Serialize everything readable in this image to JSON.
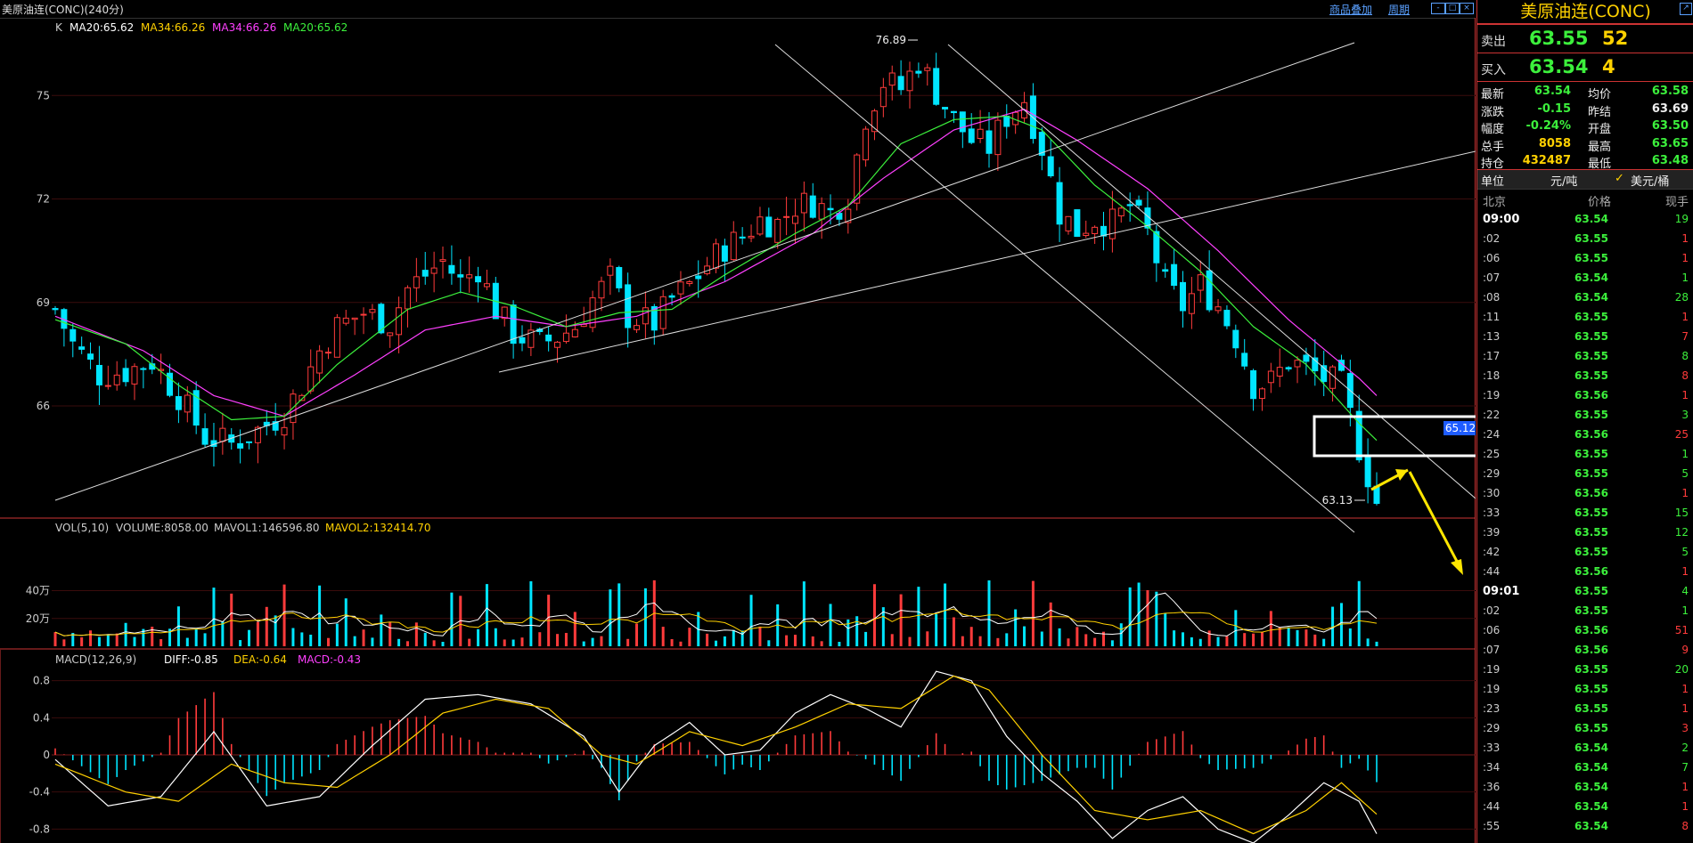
{
  "window": {
    "title": "美原油连(CONC)(240分)",
    "link_overlay": "商品叠加",
    "link_period": "周期",
    "buttons": [
      "-",
      "□",
      "×"
    ]
  },
  "chart_data": [
    {
      "type": "candlestick",
      "title": "K",
      "indicators": [
        {
          "name": "MA20:65.62",
          "color": "#ffffff"
        },
        {
          "name": "MA34:66.26",
          "color": "#ffd100"
        },
        {
          "name": "MA34:66.26",
          "color": "#ff40ff"
        },
        {
          "name": "MA20:65.62",
          "color": "#3cf03c"
        }
      ],
      "y_ticks": [
        75,
        72,
        69,
        66
      ],
      "ylim": [
        62.8,
        77.2
      ],
      "annotations": {
        "high": "76.89",
        "low": "63.13",
        "box_value": "65.12"
      },
      "close_path": [
        [
          0,
          68.8
        ],
        [
          2,
          67.8
        ],
        [
          5,
          66.9
        ],
        [
          8,
          67.0
        ],
        [
          11,
          67.3
        ],
        [
          14,
          66.3
        ],
        [
          17,
          65.1
        ],
        [
          20,
          64.9
        ],
        [
          23,
          65.3
        ],
        [
          26,
          65.8
        ],
        [
          28,
          66.6
        ],
        [
          30,
          67.6
        ],
        [
          32,
          68.3
        ],
        [
          35,
          68.7
        ],
        [
          38,
          68.4
        ],
        [
          40,
          69.4
        ],
        [
          42,
          69.8
        ],
        [
          44,
          70.2
        ],
        [
          46,
          69.6
        ],
        [
          48,
          70.0
        ],
        [
          50,
          68.8
        ],
        [
          52,
          68.1
        ],
        [
          55,
          67.8
        ],
        [
          57,
          68.0
        ],
        [
          59,
          68.3
        ],
        [
          61,
          69.1
        ],
        [
          63,
          69.7
        ],
        [
          65,
          68.6
        ],
        [
          68,
          68.4
        ],
        [
          70,
          69.1
        ],
        [
          72,
          69.5
        ],
        [
          74,
          70.1
        ],
        [
          76,
          70.6
        ],
        [
          78,
          70.9
        ],
        [
          80,
          71.4
        ],
        [
          82,
          71.3
        ],
        [
          84,
          71.8
        ],
        [
          86,
          71.9
        ],
        [
          88,
          71.6
        ],
        [
          90,
          72.1
        ],
        [
          92,
          74.4
        ],
        [
          94,
          75.4
        ],
        [
          96,
          75.2
        ],
        [
          98,
          76.0
        ],
        [
          100,
          75.1
        ],
        [
          102,
          74.3
        ],
        [
          104,
          73.7
        ],
        [
          106,
          73.5
        ],
        [
          108,
          74.4
        ],
        [
          110,
          74.9
        ],
        [
          112,
          73.5
        ],
        [
          114,
          71.6
        ],
        [
          116,
          71.1
        ],
        [
          118,
          71.4
        ],
        [
          120,
          71.3
        ],
        [
          122,
          71.8
        ],
        [
          124,
          71.0
        ],
        [
          126,
          69.5
        ],
        [
          128,
          68.9
        ],
        [
          130,
          69.5
        ],
        [
          132,
          68.9
        ],
        [
          134,
          68.0
        ],
        [
          136,
          66.6
        ],
        [
          138,
          66.7
        ],
        [
          140,
          67.3
        ],
        [
          142,
          67.1
        ],
        [
          144,
          66.8
        ],
        [
          146,
          66.6
        ],
        [
          148,
          64.8
        ],
        [
          150,
          63.2
        ]
      ],
      "ma_fast": [
        [
          0,
          68.5
        ],
        [
          8,
          67.8
        ],
        [
          14,
          66.6
        ],
        [
          20,
          65.6
        ],
        [
          26,
          65.7
        ],
        [
          32,
          67.2
        ],
        [
          40,
          68.8
        ],
        [
          46,
          69.3
        ],
        [
          52,
          68.9
        ],
        [
          58,
          68.3
        ],
        [
          64,
          68.7
        ],
        [
          70,
          68.8
        ],
        [
          76,
          69.8
        ],
        [
          84,
          71.0
        ],
        [
          90,
          71.8
        ],
        [
          96,
          73.6
        ],
        [
          102,
          74.3
        ],
        [
          108,
          74.4
        ],
        [
          112,
          74.0
        ],
        [
          118,
          72.4
        ],
        [
          124,
          71.2
        ],
        [
          130,
          69.9
        ],
        [
          136,
          68.3
        ],
        [
          142,
          67.2
        ],
        [
          148,
          65.5
        ],
        [
          150,
          65.0
        ]
      ],
      "ma_slow": [
        [
          0,
          68.6
        ],
        [
          10,
          67.6
        ],
        [
          18,
          66.3
        ],
        [
          26,
          65.7
        ],
        [
          34,
          66.9
        ],
        [
          42,
          68.2
        ],
        [
          50,
          68.6
        ],
        [
          58,
          68.3
        ],
        [
          66,
          68.6
        ],
        [
          76,
          69.6
        ],
        [
          86,
          71.0
        ],
        [
          94,
          72.6
        ],
        [
          102,
          74.0
        ],
        [
          110,
          74.6
        ],
        [
          116,
          73.7
        ],
        [
          124,
          72.3
        ],
        [
          132,
          70.5
        ],
        [
          140,
          68.5
        ],
        [
          148,
          66.8
        ],
        [
          150,
          66.3
        ]
      ]
    },
    {
      "type": "bar",
      "title": "VOL(5,10)",
      "legend": [
        "VOLUME:8058.00",
        "MAVOL1:146596.80",
        "MAVOL2:132414.70"
      ],
      "y_ticks": [
        "40万",
        "20万"
      ]
    },
    {
      "type": "bar",
      "title": "MACD(12,26,9)",
      "legend": [
        "DIFF:-0.85",
        "DEA:-0.64",
        "MACD:-0.43"
      ],
      "y_ticks": [
        "0.8",
        "0.4",
        "0",
        "-0.4",
        "-0.8"
      ],
      "ylim": [
        -0.95,
        0.95
      ],
      "diff": [
        [
          0,
          -0.05
        ],
        [
          6,
          -0.55
        ],
        [
          12,
          -0.45
        ],
        [
          18,
          0.25
        ],
        [
          24,
          -0.55
        ],
        [
          30,
          -0.45
        ],
        [
          36,
          0.1
        ],
        [
          42,
          0.6
        ],
        [
          48,
          0.65
        ],
        [
          54,
          0.55
        ],
        [
          60,
          0.2
        ],
        [
          64,
          -0.4
        ],
        [
          68,
          0.1
        ],
        [
          72,
          0.35
        ],
        [
          76,
          0.0
        ],
        [
          80,
          0.05
        ],
        [
          84,
          0.45
        ],
        [
          88,
          0.65
        ],
        [
          92,
          0.5
        ],
        [
          96,
          0.3
        ],
        [
          100,
          0.9
        ],
        [
          104,
          0.8
        ],
        [
          108,
          0.2
        ],
        [
          112,
          -0.2
        ],
        [
          116,
          -0.5
        ],
        [
          120,
          -0.9
        ],
        [
          124,
          -0.6
        ],
        [
          128,
          -0.45
        ],
        [
          132,
          -0.8
        ],
        [
          136,
          -0.95
        ],
        [
          140,
          -0.65
        ],
        [
          144,
          -0.3
        ],
        [
          148,
          -0.5
        ],
        [
          150,
          -0.85
        ]
      ],
      "dea": [
        [
          0,
          -0.1
        ],
        [
          8,
          -0.4
        ],
        [
          14,
          -0.5
        ],
        [
          20,
          -0.1
        ],
        [
          26,
          -0.3
        ],
        [
          32,
          -0.35
        ],
        [
          38,
          0.0
        ],
        [
          44,
          0.45
        ],
        [
          50,
          0.6
        ],
        [
          56,
          0.5
        ],
        [
          62,
          0.0
        ],
        [
          66,
          -0.1
        ],
        [
          72,
          0.25
        ],
        [
          78,
          0.1
        ],
        [
          84,
          0.3
        ],
        [
          90,
          0.55
        ],
        [
          96,
          0.5
        ],
        [
          102,
          0.85
        ],
        [
          106,
          0.7
        ],
        [
          112,
          0.0
        ],
        [
          118,
          -0.6
        ],
        [
          124,
          -0.7
        ],
        [
          130,
          -0.6
        ],
        [
          136,
          -0.85
        ],
        [
          142,
          -0.6
        ],
        [
          146,
          -0.3
        ],
        [
          150,
          -0.64
        ]
      ]
    }
  ],
  "time_axis_note": "",
  "right_panel": {
    "name": "美原油连(CONC)",
    "sell_label": "卖出",
    "sell_price": "63.55",
    "sell_vol": "52",
    "buy_label": "买入",
    "buy_price": "63.54",
    "buy_vol": "4",
    "stats": [
      {
        "k1": "最新",
        "v1": "63.54",
        "c1": "green",
        "k2": "均价",
        "v2": "63.58",
        "c2": "green"
      },
      {
        "k1": "涨跌",
        "v1": "-0.15",
        "c1": "green",
        "k2": "昨结",
        "v2": "63.69",
        "c2": "white"
      },
      {
        "k1": "幅度",
        "v1": "-0.24%",
        "c1": "green",
        "k2": "开盘",
        "v2": "63.50",
        "c2": "green"
      },
      {
        "k1": "总手",
        "v1": "8058",
        "c1": "yellow",
        "k2": "最高",
        "v2": "63.65",
        "c2": "green"
      },
      {
        "k1": "持仓",
        "v1": "432487",
        "c1": "yellow",
        "k2": "最低",
        "v2": "63.48",
        "c2": "green"
      }
    ],
    "unit_label": "单位",
    "unit_a": "元/吨",
    "unit_b": "美元/桶",
    "col_time": "北京",
    "col_price": "价格",
    "col_vol": "现手",
    "ticks": [
      {
        "t": "09:00",
        "p": "63.54",
        "v": "19",
        "vc": "green",
        "b": true
      },
      {
        "t": ":02",
        "p": "63.55",
        "v": "1",
        "vc": "red"
      },
      {
        "t": ":06",
        "p": "63.55",
        "v": "1",
        "vc": "red"
      },
      {
        "t": ":07",
        "p": "63.54",
        "v": "1",
        "vc": "green"
      },
      {
        "t": ":08",
        "p": "63.54",
        "v": "28",
        "vc": "green"
      },
      {
        "t": ":11",
        "p": "63.55",
        "v": "1",
        "vc": "red"
      },
      {
        "t": ":13",
        "p": "63.55",
        "v": "7",
        "vc": "red"
      },
      {
        "t": ":17",
        "p": "63.55",
        "v": "8",
        "vc": "green"
      },
      {
        "t": ":18",
        "p": "63.55",
        "v": "8",
        "vc": "red"
      },
      {
        "t": ":19",
        "p": "63.56",
        "v": "1",
        "vc": "red"
      },
      {
        "t": ":22",
        "p": "63.55",
        "v": "3",
        "vc": "green"
      },
      {
        "t": ":24",
        "p": "63.56",
        "v": "25",
        "vc": "red"
      },
      {
        "t": ":25",
        "p": "63.55",
        "v": "1",
        "vc": "green"
      },
      {
        "t": ":29",
        "p": "63.55",
        "v": "5",
        "vc": "green"
      },
      {
        "t": ":30",
        "p": "63.56",
        "v": "1",
        "vc": "red"
      },
      {
        "t": ":33",
        "p": "63.55",
        "v": "15",
        "vc": "green"
      },
      {
        "t": ":39",
        "p": "63.55",
        "v": "12",
        "vc": "green"
      },
      {
        "t": ":42",
        "p": "63.55",
        "v": "5",
        "vc": "green"
      },
      {
        "t": ":44",
        "p": "63.56",
        "v": "1",
        "vc": "red"
      },
      {
        "t": "09:01",
        "p": "63.55",
        "v": "4",
        "vc": "green",
        "b": true
      },
      {
        "t": ":02",
        "p": "63.55",
        "v": "1",
        "vc": "green"
      },
      {
        "t": ":06",
        "p": "63.56",
        "v": "51",
        "vc": "red"
      },
      {
        "t": ":07",
        "p": "63.56",
        "v": "9",
        "vc": "red"
      },
      {
        "t": ":19",
        "p": "63.55",
        "v": "20",
        "vc": "green"
      },
      {
        "t": ":19",
        "p": "63.55",
        "v": "1",
        "vc": "red"
      },
      {
        "t": ":23",
        "p": "63.55",
        "v": "1",
        "vc": "red"
      },
      {
        "t": ":29",
        "p": "63.55",
        "v": "3",
        "vc": "red"
      },
      {
        "t": ":33",
        "p": "63.54",
        "v": "2",
        "vc": "green"
      },
      {
        "t": ":34",
        "p": "63.54",
        "v": "7",
        "vc": "green"
      },
      {
        "t": ":36",
        "p": "63.54",
        "v": "1",
        "vc": "red"
      },
      {
        "t": ":44",
        "p": "63.54",
        "v": "1",
        "vc": "red"
      },
      {
        "t": ":55",
        "p": "63.54",
        "v": "8",
        "vc": "red"
      }
    ]
  },
  "colors": {
    "up": "#ff3b3b",
    "down": "#00e5ff",
    "ma_white": "#ffffff",
    "ma_yellow": "#ffd100",
    "ma_magenta": "#ff40ff",
    "ma_green": "#3cf03c",
    "frame": "#c33"
  }
}
